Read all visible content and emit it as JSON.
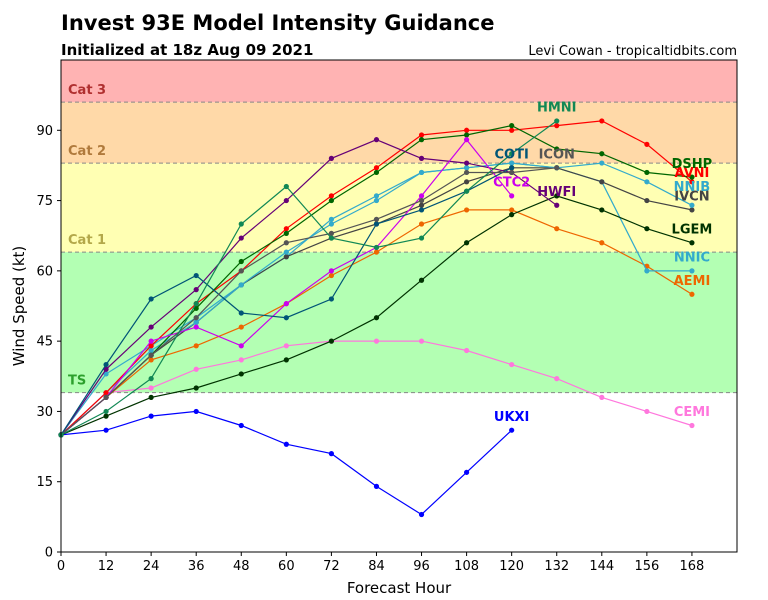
{
  "header": {
    "title": "Invest 93E Model Intensity Guidance",
    "subtitle": "Initialized at 18z Aug 09 2021",
    "credit": "Levi Cowan - tropicaltidbits.com"
  },
  "chart_data": {
    "type": "line",
    "xlabel": "Forecast Hour",
    "ylabel": "Wind Speed (kt)",
    "xlim": [
      0,
      180
    ],
    "ylim": [
      0,
      105
    ],
    "xticks": [
      0,
      12,
      24,
      36,
      48,
      60,
      72,
      84,
      96,
      108,
      120,
      132,
      144,
      156,
      168
    ],
    "yticks": [
      0,
      15,
      30,
      45,
      60,
      75,
      90
    ],
    "grid": false,
    "bands": [
      {
        "label": "",
        "from": 0,
        "to": 34,
        "color": "#ffffff",
        "label_color": "#000000"
      },
      {
        "label": "TS",
        "from": 34,
        "to": 64,
        "color": "#b3ffb3",
        "label_color": "#2ca02c"
      },
      {
        "label": "Cat 1",
        "from": 64,
        "to": 83,
        "color": "#ffffb3",
        "label_color": "#b3a84a"
      },
      {
        "label": "Cat 2",
        "from": 83,
        "to": 96,
        "color": "#ffd9a8",
        "label_color": "#b07a3c"
      },
      {
        "label": "Cat 3",
        "from": 96,
        "to": 105,
        "color": "#ffb3b3",
        "label_color": "#b03030"
      }
    ],
    "series": [
      {
        "name": "UKXI",
        "color": "#0000ff",
        "x": [
          0,
          12,
          24,
          36,
          48,
          60,
          72,
          84,
          96,
          108,
          120
        ],
        "values": [
          25,
          26,
          29,
          30,
          27,
          23,
          21,
          14,
          8,
          17,
          26
        ],
        "label_at": [
          120,
          28
        ]
      },
      {
        "name": "CEMI",
        "color": "#ff77dd",
        "x": [
          0,
          12,
          24,
          36,
          48,
          60,
          72,
          84,
          96,
          108,
          120,
          132,
          144,
          156,
          168
        ],
        "values": [
          25,
          34,
          35,
          39,
          41,
          44,
          45,
          45,
          45,
          43,
          40,
          37,
          33,
          30,
          27
        ],
        "label_at": [
          168,
          29
        ]
      },
      {
        "name": "AEMI",
        "color": "#ee6600",
        "x": [
          0,
          12,
          24,
          36,
          48,
          60,
          72,
          84,
          96,
          108,
          120,
          132,
          144,
          156,
          168
        ],
        "values": [
          25,
          33,
          41,
          44,
          48,
          53,
          59,
          64,
          70,
          73,
          73,
          69,
          66,
          61,
          55
        ],
        "label_at": [
          168,
          57
        ]
      },
      {
        "name": "NNIC",
        "color": "#33aacc",
        "x": [
          0,
          12,
          24,
          36,
          48,
          60,
          72,
          84,
          96,
          108,
          120,
          132,
          144,
          156,
          168
        ],
        "values": [
          25,
          38,
          44,
          50,
          57,
          63,
          71,
          76,
          81,
          82,
          83,
          82,
          79,
          60,
          60
        ],
        "label_at": [
          168,
          62
        ]
      },
      {
        "name": "LGEM",
        "color": "#003300",
        "x": [
          0,
          12,
          24,
          36,
          48,
          60,
          72,
          84,
          96,
          108,
          120,
          132,
          144,
          156,
          168
        ],
        "values": [
          25,
          29,
          33,
          35,
          38,
          41,
          45,
          50,
          58,
          66,
          72,
          76,
          73,
          69,
          66
        ],
        "label_at": [
          168,
          68
        ]
      },
      {
        "name": "IVCN",
        "color": "#444444",
        "x": [
          0,
          12,
          24,
          36,
          48,
          60,
          72,
          84,
          96,
          108,
          120,
          132,
          144,
          156,
          168
        ],
        "values": [
          25,
          33,
          42,
          49,
          57,
          63,
          67,
          70,
          74,
          79,
          82,
          82,
          79,
          75,
          73
        ],
        "label_at": [
          168,
          75
        ]
      },
      {
        "name": "NNIB",
        "color": "#33aacc",
        "x": [
          0,
          12,
          24,
          36,
          48,
          60,
          72,
          84,
          96,
          108,
          120,
          132,
          144,
          156,
          168
        ],
        "values": [
          25,
          34,
          43,
          49,
          57,
          64,
          70,
          75,
          81,
          82,
          83,
          82,
          83,
          79,
          74
        ],
        "label_at": [
          168,
          77
        ]
      },
      {
        "name": "AVNI",
        "color": "#ff0000",
        "x": [
          0,
          12,
          24,
          36,
          48,
          60,
          72,
          84,
          96,
          108,
          120,
          132,
          144,
          156,
          168
        ],
        "values": [
          25,
          34,
          44,
          53,
          60,
          69,
          76,
          82,
          89,
          90,
          90,
          91,
          92,
          87,
          79
        ],
        "label_at": [
          168,
          80
        ]
      },
      {
        "name": "DSHP",
        "color": "#006600",
        "x": [
          0,
          12,
          24,
          36,
          48,
          60,
          72,
          84,
          96,
          108,
          120,
          132,
          144,
          156,
          168
        ],
        "values": [
          25,
          33,
          42,
          52,
          62,
          68,
          75,
          81,
          88,
          89,
          91,
          86,
          85,
          81,
          80
        ],
        "label_at": [
          168,
          82
        ]
      },
      {
        "name": "HWFI",
        "color": "#660077",
        "x": [
          0,
          12,
          24,
          36,
          48,
          60,
          72,
          84,
          96,
          108,
          120,
          132
        ],
        "values": [
          25,
          39,
          48,
          56,
          67,
          75,
          84,
          88,
          84,
          83,
          81,
          74
        ],
        "label_at": [
          132,
          76
        ]
      },
      {
        "name": "CTC2",
        "color": "#cc00ee",
        "x": [
          0,
          12,
          24,
          36,
          48,
          60,
          72,
          84,
          96,
          108,
          120
        ],
        "values": [
          25,
          33,
          45,
          48,
          44,
          53,
          60,
          65,
          76,
          88,
          76
        ],
        "label_at": [
          120,
          78
        ]
      },
      {
        "name": "COTI",
        "color": "#005577",
        "x": [
          0,
          12,
          24,
          36,
          48,
          60,
          72,
          84,
          96,
          108,
          120
        ],
        "values": [
          25,
          40,
          54,
          59,
          51,
          50,
          54,
          70,
          73,
          77,
          82
        ],
        "label_at": [
          120,
          84
        ]
      },
      {
        "name": "ICON",
        "color": "#555555",
        "x": [
          0,
          12,
          24,
          36,
          48,
          60,
          72,
          84,
          96,
          108,
          120,
          132
        ],
        "values": [
          25,
          33,
          42,
          50,
          60,
          66,
          68,
          71,
          75,
          81,
          81,
          82
        ],
        "label_at": [
          132,
          84
        ]
      },
      {
        "name": "HMNI",
        "color": "#118855",
        "x": [
          0,
          12,
          24,
          36,
          48,
          60,
          72,
          84,
          96,
          108,
          120,
          132
        ],
        "values": [
          25,
          30,
          37,
          53,
          70,
          78,
          67,
          65,
          67,
          77,
          85,
          92
        ],
        "label_at": [
          132,
          94
        ]
      }
    ]
  }
}
